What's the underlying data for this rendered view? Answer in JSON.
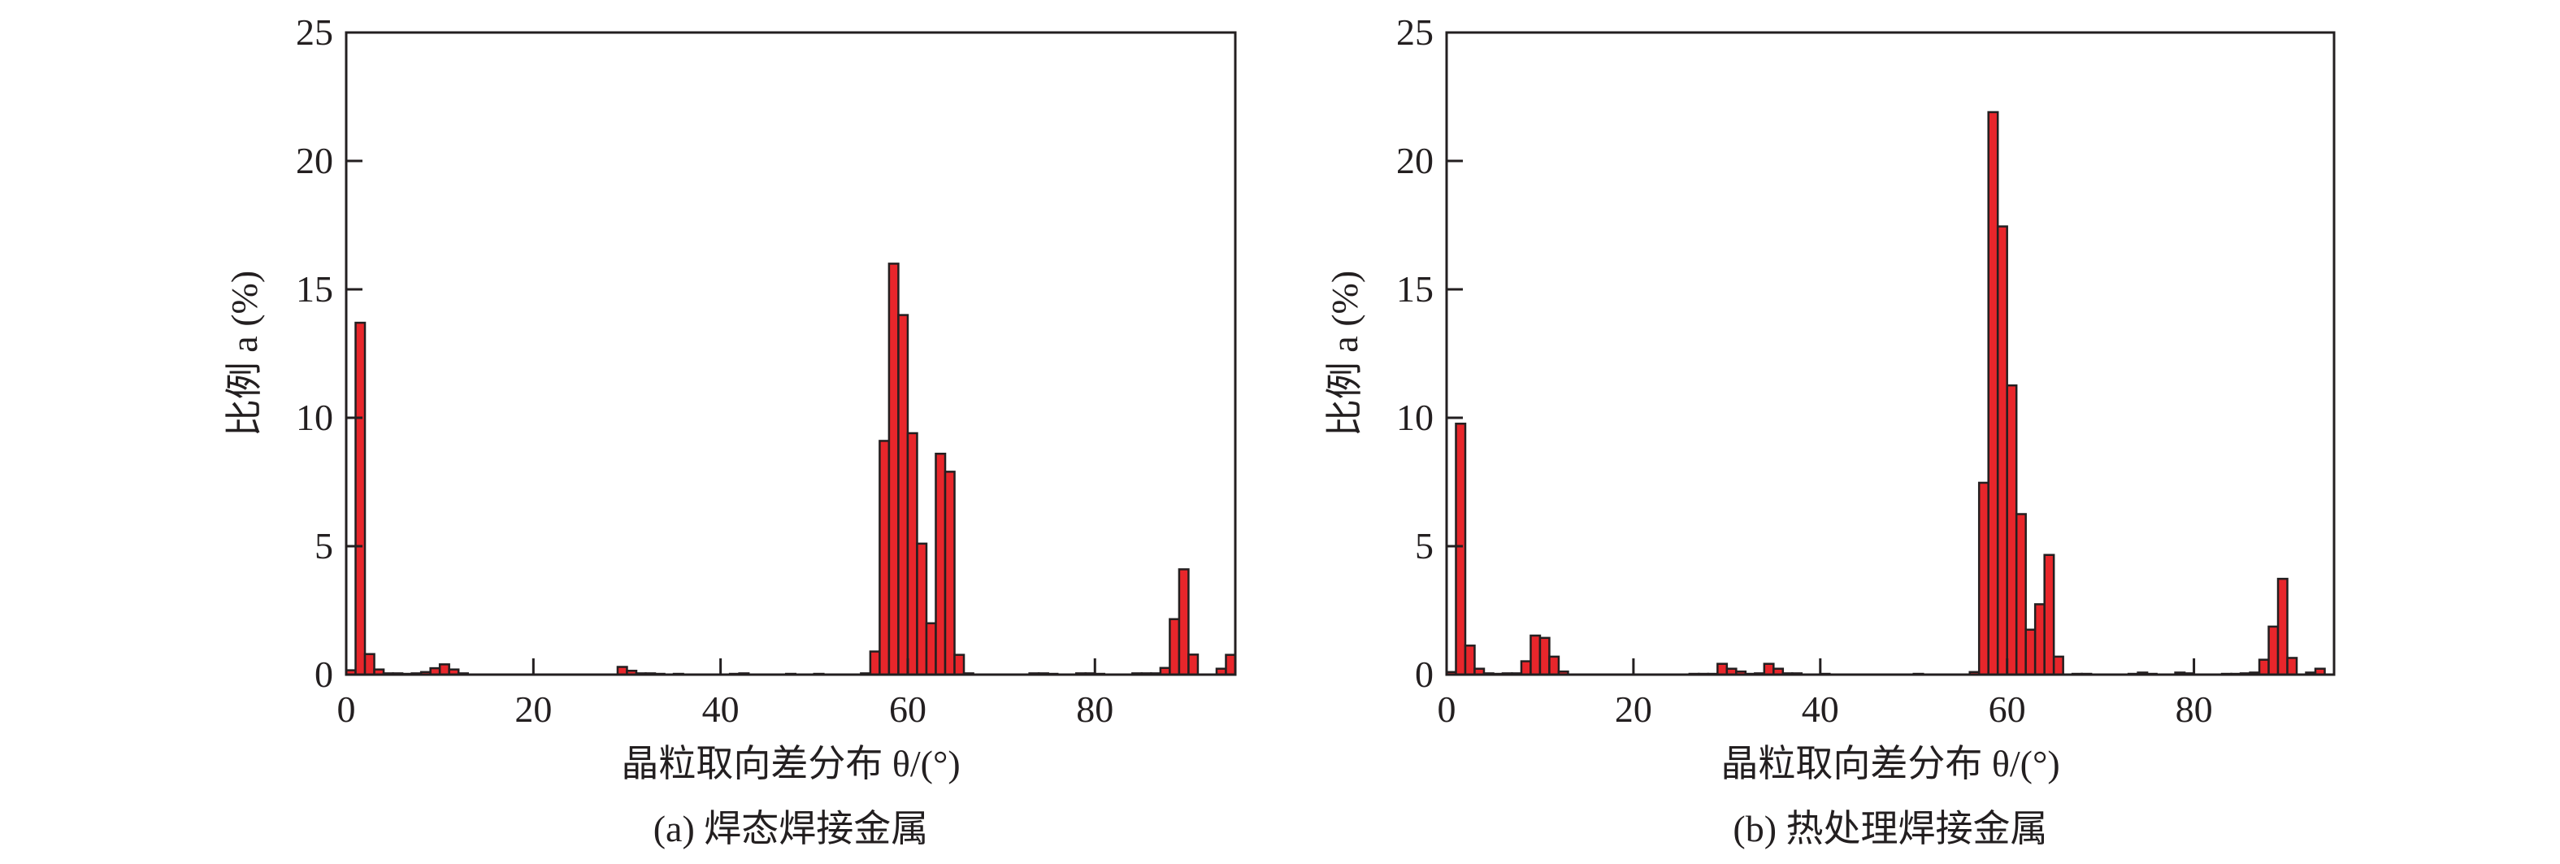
{
  "chart_data": [
    {
      "type": "bar",
      "title": "",
      "caption": "(a) 焊态焊接金属",
      "xlabel": "晶粒取向差分布 θ/(°)",
      "ylabel": "比例 a (%)",
      "xlim": [
        0,
        95
      ],
      "ylim": [
        0,
        25
      ],
      "xticks": [
        "0",
        "20",
        "40",
        "60",
        "80"
      ],
      "yticks": [
        "0",
        "5",
        "10",
        "15",
        "20",
        "25"
      ],
      "bin_width": 1,
      "grid": false,
      "bar_color": "#e8262b",
      "x": [
        0,
        1,
        2,
        3,
        4,
        5,
        6,
        7,
        8,
        9,
        10,
        11,
        12,
        29,
        30,
        31,
        32,
        33,
        35,
        41,
        42,
        47,
        50,
        55,
        56,
        57,
        58,
        59,
        60,
        61,
        62,
        63,
        64,
        65,
        66,
        73,
        74,
        75,
        78,
        79,
        80,
        84,
        85,
        86,
        87,
        88,
        89,
        90,
        93,
        94
      ],
      "values": [
        0.17,
        13.7,
        0.8,
        0.2,
        0.05,
        0.05,
        0.03,
        0.05,
        0.1,
        0.25,
        0.4,
        0.2,
        0.05,
        0.3,
        0.15,
        0.05,
        0.05,
        0.03,
        0.03,
        0.03,
        0.05,
        0.03,
        0.03,
        0.05,
        0.9,
        9.1,
        16.0,
        14.0,
        9.4,
        5.1,
        2.0,
        8.6,
        7.9,
        0.77,
        0.05,
        0.05,
        0.05,
        0.03,
        0.05,
        0.05,
        0.03,
        0.05,
        0.05,
        0.05,
        0.26,
        2.16,
        4.1,
        0.78,
        0.23,
        0.77
      ]
    },
    {
      "type": "bar",
      "title": "",
      "caption": "(b) 热处理焊接金属",
      "xlabel": "晶粒取向差分布 θ/(°)",
      "ylabel": "比例 a (%)",
      "xlim": [
        0,
        95
      ],
      "ylim": [
        0,
        25
      ],
      "xticks": [
        "0",
        "20",
        "40",
        "60",
        "80"
      ],
      "yticks": [
        "0",
        "5",
        "10",
        "15",
        "20",
        "25"
      ],
      "bin_width": 1,
      "grid": false,
      "bar_color": "#e8262b",
      "x": [
        0,
        1,
        2,
        3,
        4,
        5,
        6,
        7,
        8,
        9,
        10,
        11,
        12,
        26,
        27,
        28,
        29,
        30,
        31,
        32,
        33,
        34,
        35,
        36,
        37,
        40,
        50,
        56,
        57,
        58,
        59,
        60,
        61,
        62,
        63,
        64,
        65,
        67,
        68,
        73,
        74,
        75,
        78,
        79,
        83,
        84,
        85,
        86,
        87,
        88,
        89,
        90,
        92,
        93
      ],
      "values": [
        0.1,
        9.77,
        1.13,
        0.23,
        0.05,
        0.03,
        0.05,
        0.05,
        0.52,
        1.52,
        1.43,
        0.7,
        0.12,
        0.03,
        0.03,
        0.03,
        0.42,
        0.23,
        0.12,
        0.03,
        0.05,
        0.42,
        0.23,
        0.05,
        0.05,
        0.03,
        0.03,
        0.1,
        7.47,
        21.9,
        17.45,
        11.26,
        6.25,
        1.75,
        2.74,
        4.66,
        0.7,
        0.03,
        0.03,
        0.03,
        0.08,
        0.03,
        0.08,
        0.05,
        0.03,
        0.03,
        0.05,
        0.08,
        0.58,
        1.87,
        3.73,
        0.65,
        0.08,
        0.23
      ]
    }
  ]
}
